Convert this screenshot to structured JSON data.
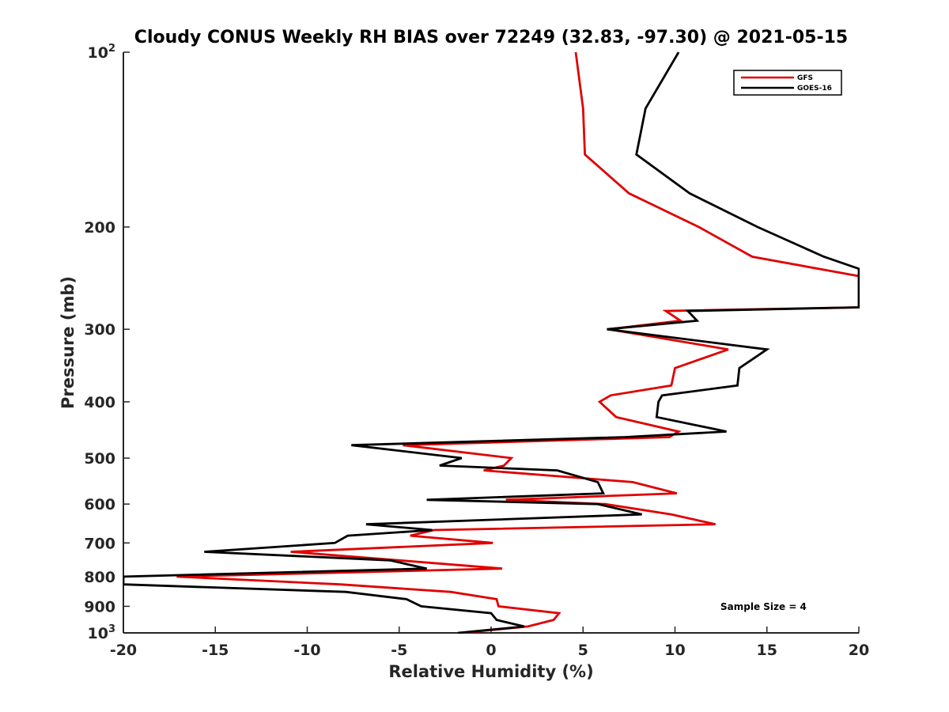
{
  "chart_data": {
    "type": "line",
    "title": "Cloudy CONUS Weekly RH BIAS over 72249 (32.83, -97.30) @ 2021-05-15",
    "xlabel": "Relative Humidity (%)",
    "ylabel": "Pressure (mb)",
    "xlim": [
      -20,
      20
    ],
    "ylim": [
      100,
      1000
    ],
    "y_scale": "log",
    "y_reversed": true,
    "x_ticks": [
      "-20",
      "-15",
      "-10",
      "-5",
      "0",
      "5",
      "10",
      "15",
      "20"
    ],
    "y_ticks": [
      {
        "value": 100,
        "base": "10",
        "exp": "2"
      },
      {
        "value": 200,
        "label": "200"
      },
      {
        "value": 300,
        "label": "300"
      },
      {
        "value": 400,
        "label": "400"
      },
      {
        "value": 500,
        "label": "500"
      },
      {
        "value": 600,
        "label": "600"
      },
      {
        "value": 700,
        "label": "700"
      },
      {
        "value": 800,
        "label": "800"
      },
      {
        "value": 900,
        "label": "900"
      },
      {
        "value": 1000,
        "base": "10",
        "exp": "3"
      }
    ],
    "grid": false,
    "legend_position": "top-right",
    "colors": {
      "GFS": "#e00000",
      "GOES-16": "#000000"
    },
    "series": [
      {
        "name": "GFS",
        "color": "#e00000",
        "points": [
          [
            4.6,
            100
          ],
          [
            5.0,
            125
          ],
          [
            5.1,
            150
          ],
          [
            7.5,
            175
          ],
          [
            11.3,
            200
          ],
          [
            14.2,
            225
          ],
          [
            20.0,
            243
          ],
          [
            20.0,
            260
          ],
          [
            20.0,
            275
          ],
          [
            9.5,
            279
          ],
          [
            10.3,
            290
          ],
          [
            6.4,
            300
          ],
          [
            12.9,
            325
          ],
          [
            10.0,
            350
          ],
          [
            9.8,
            375
          ],
          [
            6.5,
            390
          ],
          [
            5.9,
            400
          ],
          [
            6.8,
            425
          ],
          [
            10.2,
            450
          ],
          [
            9.7,
            460
          ],
          [
            -4.8,
            475
          ],
          [
            1.1,
            500
          ],
          [
            0.7,
            515
          ],
          [
            -0.4,
            525
          ],
          [
            7.7,
            550
          ],
          [
            10.1,
            575
          ],
          [
            0.8,
            590
          ],
          [
            6.2,
            600
          ],
          [
            9.8,
            625
          ],
          [
            12.2,
            650
          ],
          [
            -3.1,
            665
          ],
          [
            -4.4,
            680
          ],
          [
            0.1,
            700
          ],
          [
            -10.9,
            725
          ],
          [
            -5.0,
            750
          ],
          [
            0.6,
            775
          ],
          [
            -17.1,
            800
          ],
          [
            -8.2,
            825
          ],
          [
            -2.2,
            850
          ],
          [
            0.3,
            875
          ],
          [
            0.4,
            900
          ],
          [
            3.7,
            925
          ],
          [
            3.4,
            950
          ],
          [
            2.0,
            975
          ],
          [
            -1.6,
            1000
          ]
        ]
      },
      {
        "name": "GOES-16",
        "color": "#000000",
        "points": [
          [
            10.2,
            100
          ],
          [
            8.4,
            125
          ],
          [
            7.9,
            150
          ],
          [
            10.8,
            175
          ],
          [
            14.5,
            200
          ],
          [
            18.1,
            225
          ],
          [
            20.0,
            236
          ],
          [
            20.0,
            260
          ],
          [
            20.0,
            275
          ],
          [
            10.7,
            279
          ],
          [
            11.2,
            290
          ],
          [
            6.3,
            300
          ],
          [
            15.0,
            325
          ],
          [
            13.5,
            350
          ],
          [
            13.4,
            375
          ],
          [
            9.3,
            390
          ],
          [
            9.1,
            400
          ],
          [
            9.0,
            425
          ],
          [
            12.8,
            450
          ],
          [
            7.3,
            460
          ],
          [
            -7.6,
            475
          ],
          [
            -1.6,
            500
          ],
          [
            -2.8,
            515
          ],
          [
            3.6,
            525
          ],
          [
            5.8,
            550
          ],
          [
            6.1,
            575
          ],
          [
            -3.5,
            590
          ],
          [
            5.8,
            600
          ],
          [
            8.2,
            625
          ],
          [
            -6.8,
            650
          ],
          [
            -3.2,
            665
          ],
          [
            -7.8,
            680
          ],
          [
            -8.5,
            700
          ],
          [
            -15.6,
            725
          ],
          [
            -5.5,
            750
          ],
          [
            -3.5,
            775
          ],
          [
            -20.0,
            800
          ],
          [
            -20.0,
            825
          ],
          [
            -7.9,
            850
          ],
          [
            -4.6,
            875
          ],
          [
            -3.8,
            900
          ],
          [
            0.0,
            925
          ],
          [
            0.3,
            950
          ],
          [
            1.8,
            975
          ],
          [
            -1.8,
            1000
          ]
        ]
      }
    ],
    "annotation": "Sample Size = 4"
  }
}
